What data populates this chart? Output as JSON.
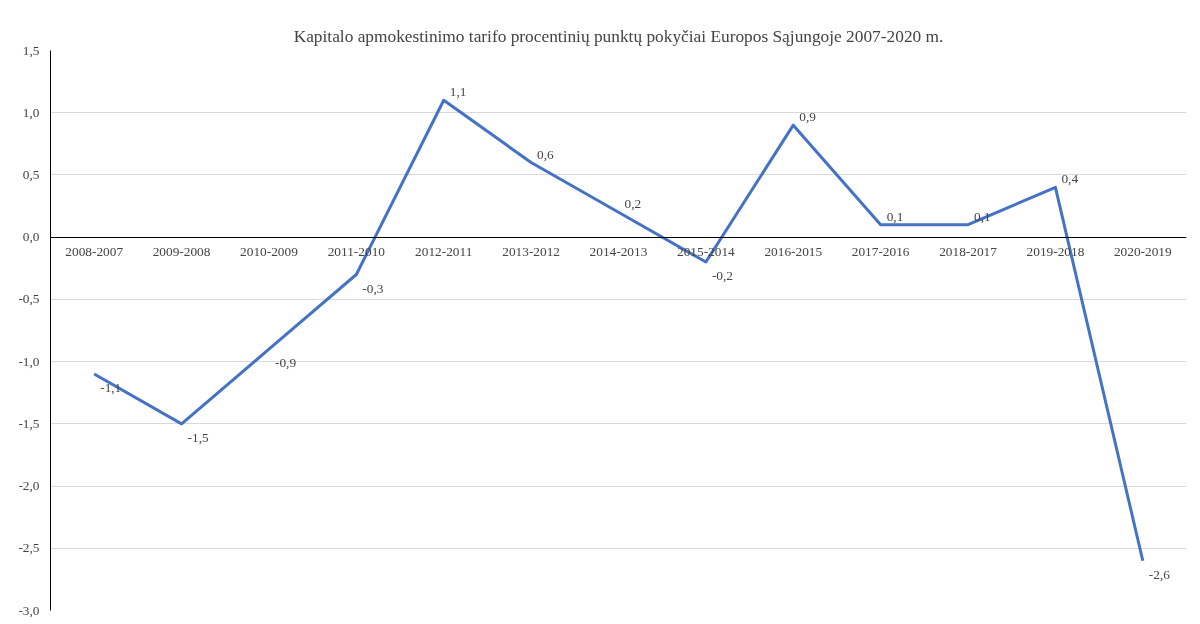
{
  "chart_data": {
    "type": "line",
    "title": "Kapitalo apmokestinimo tarifo procentinių punktų pokyčiai Europos Sąjungoje 2007-2020 m.",
    "categories": [
      "2008-2007",
      "2009-2008",
      "2010-2009",
      "2011-2010",
      "2012-2011",
      "2013-2012",
      "2014-2013",
      "2015-2014",
      "2016-2015",
      "2017-2016",
      "2018-2017",
      "2019-2018",
      "2020-2019"
    ],
    "series": [
      {
        "color": "#4472c4",
        "values": [
          -1.1,
          -1.5,
          -0.9,
          -0.3,
          1.1,
          0.6,
          0.2,
          -0.2,
          0.9,
          0.1,
          0.1,
          0.4,
          -2.6
        ],
        "value_labels": [
          "-1,1",
          "-1,5",
          "-0,9",
          "-0,3",
          "1,1",
          "0,6",
          "0,2",
          "-0,2",
          "0,9",
          "0,1",
          "0,1",
          "0,4",
          "-2,6"
        ]
      }
    ],
    "ylim": [
      -3,
      1.5
    ],
    "yticks": [
      {
        "value": -3,
        "label": "-3,0"
      },
      {
        "value": -2.5,
        "label": "-2,5"
      },
      {
        "value": -2,
        "label": "-2,0"
      },
      {
        "value": -1.5,
        "label": "-1,5"
      },
      {
        "value": -1,
        "label": "-1,0"
      },
      {
        "value": -0.5,
        "label": "-0,5"
      },
      {
        "value": 0,
        "label": "0,0"
      },
      {
        "value": 0.5,
        "label": "0,5"
      },
      {
        "value": 1,
        "label": "1,0"
      },
      {
        "value": 1.5,
        "label": "1,5"
      }
    ],
    "grid": "y",
    "marker": "none",
    "line_style": "solid"
  }
}
